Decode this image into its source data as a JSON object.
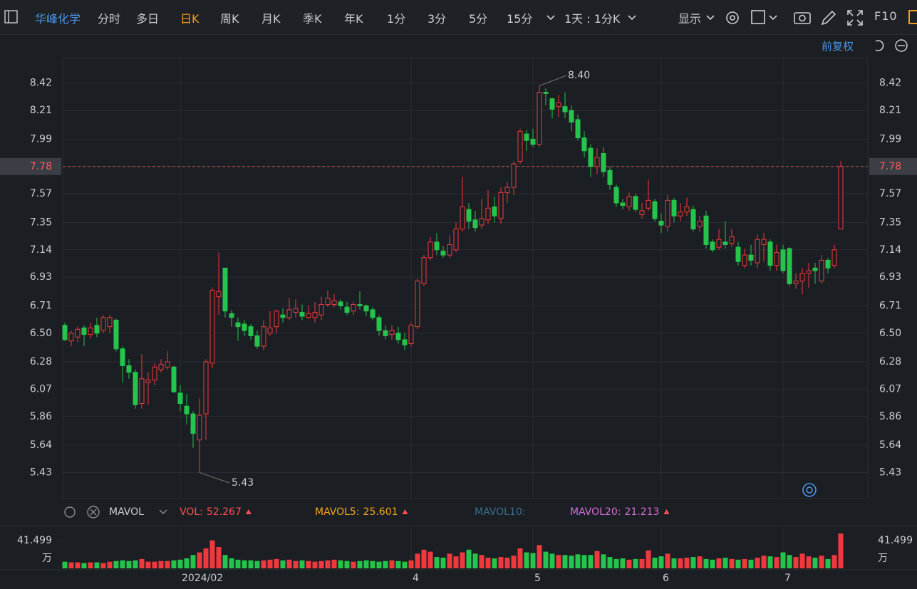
{
  "toolbar": {
    "stock": "华峰化学",
    "periods": [
      "分时",
      "多日",
      "日K",
      "周K",
      "月K",
      "季K",
      "年K",
      "1分",
      "3分",
      "5分",
      "15分"
    ],
    "active": "日K",
    "range": "1天 : 1分K",
    "display": "显示",
    "f10": "F10",
    "adjust": "前复权"
  },
  "chart_data": [
    {
      "type": "candlestick",
      "categories": [
        null,
        null,
        null,
        null,
        null,
        null,
        null,
        null,
        null,
        null,
        null,
        null,
        null,
        null,
        null,
        null,
        null,
        null,
        "2024/02",
        null,
        null,
        null,
        null,
        null,
        null,
        null,
        null,
        null,
        null,
        null,
        null,
        null,
        null,
        null,
        null,
        null,
        null,
        null,
        null,
        null,
        null,
        null,
        null,
        null,
        null,
        null,
        null,
        null,
        null,
        null,
        null,
        null,
        null,
        null,
        "4",
        null,
        null,
        null,
        null,
        null,
        null,
        null,
        null,
        null,
        null,
        null,
        null,
        null,
        null,
        null,
        null,
        null,
        null,
        "5",
        null,
        null,
        null,
        null,
        null,
        null,
        null,
        null,
        null,
        null,
        null,
        null,
        null,
        null,
        null,
        null,
        null,
        null,
        null,
        "6",
        null,
        null,
        null,
        null,
        null,
        null,
        null,
        null,
        null,
        null,
        null,
        null,
        null,
        null,
        null,
        null,
        null,
        null,
        "7",
        null,
        null,
        null,
        null,
        null,
        null,
        null,
        null,
        null
      ],
      "open": [
        6.56,
        6.44,
        6.47,
        6.54,
        6.49,
        6.56,
        6.52,
        6.55,
        6.6,
        6.38,
        6.25,
        6.2,
        5.96,
        6.12,
        6.14,
        6.22,
        6.24,
        6.24,
        6.04,
        5.94,
        5.88,
        5.68,
        5.88,
        6.27,
        6.78,
        7.0,
        6.65,
        6.58,
        6.57,
        6.55,
        6.48,
        6.4,
        6.5,
        6.55,
        6.64,
        6.62,
        6.66,
        6.66,
        6.62,
        6.62,
        6.64,
        6.72,
        6.72,
        6.74,
        6.7,
        6.67,
        6.72,
        6.71,
        6.68,
        6.62,
        6.52,
        6.49,
        6.5,
        6.45,
        6.42,
        6.55,
        6.88,
        7.08,
        7.2,
        7.13,
        7.1,
        7.14,
        7.3,
        7.45,
        7.37,
        7.33,
        7.37,
        7.47,
        7.38,
        7.58,
        7.62,
        7.82,
        8.03,
        7.99,
        7.95,
        8.35,
        8.3,
        8.24,
        8.24,
        8.21,
        8.14,
        8.0,
        7.92,
        7.78,
        7.88,
        7.75,
        7.62,
        7.5,
        7.47,
        7.55,
        7.41,
        7.46,
        7.51,
        7.36,
        7.32,
        7.52,
        7.4,
        7.43,
        7.45,
        7.32,
        7.4,
        7.2,
        7.16,
        7.2,
        7.19,
        7.16,
        7.02,
        7.1,
        7.04,
        7.18,
        7.2,
        7.02,
        7.14,
        7.15,
        6.88,
        6.9,
        6.96,
        7.0,
        6.9,
        7.06,
        7.02,
        7.3
      ],
      "high": [
        6.58,
        6.52,
        6.55,
        6.56,
        6.58,
        6.62,
        6.64,
        6.64,
        6.61,
        6.4,
        6.3,
        6.22,
        6.34,
        6.2,
        6.27,
        6.3,
        6.36,
        6.25,
        6.1,
        6.03,
        5.9,
        6.0,
        6.3,
        6.85,
        7.12,
        7.0,
        6.68,
        6.62,
        6.6,
        6.57,
        6.52,
        6.6,
        6.67,
        6.68,
        6.69,
        6.77,
        6.76,
        6.72,
        6.71,
        6.74,
        6.78,
        6.83,
        6.8,
        6.76,
        6.74,
        6.74,
        6.82,
        6.72,
        6.7,
        6.64,
        6.56,
        6.56,
        6.55,
        6.5,
        6.58,
        6.92,
        7.1,
        7.24,
        7.27,
        7.17,
        7.25,
        7.35,
        7.7,
        7.5,
        7.44,
        7.53,
        7.6,
        7.55,
        7.62,
        7.66,
        7.82,
        8.07,
        8.06,
        8.07,
        8.4,
        8.38,
        8.31,
        8.33,
        8.35,
        8.25,
        8.18,
        8.05,
        7.95,
        7.92,
        7.93,
        7.78,
        7.64,
        7.53,
        7.58,
        7.57,
        7.5,
        7.68,
        7.53,
        7.42,
        7.56,
        7.54,
        7.5,
        7.54,
        7.48,
        7.4,
        7.44,
        7.22,
        7.3,
        7.36,
        7.3,
        7.2,
        7.15,
        7.18,
        7.26,
        7.27,
        7.22,
        7.18,
        7.18,
        7.16,
        6.96,
        7.0,
        7.04,
        7.04,
        7.1,
        7.08,
        7.18,
        7.82
      ],
      "low": [
        6.44,
        6.4,
        6.43,
        6.4,
        6.46,
        6.47,
        6.5,
        6.5,
        6.36,
        6.12,
        6.15,
        5.92,
        5.92,
        5.95,
        6.1,
        6.2,
        6.22,
        6.04,
        5.9,
        5.8,
        5.62,
        5.43,
        5.68,
        6.23,
        6.64,
        6.62,
        6.55,
        6.44,
        6.48,
        6.45,
        6.38,
        6.37,
        6.48,
        6.5,
        6.58,
        6.6,
        6.62,
        6.6,
        6.61,
        6.58,
        6.6,
        6.7,
        6.7,
        6.68,
        6.64,
        6.64,
        6.68,
        6.63,
        6.6,
        6.48,
        6.45,
        6.45,
        6.42,
        6.37,
        6.4,
        6.53,
        6.86,
        7.06,
        7.1,
        7.08,
        7.08,
        7.12,
        7.28,
        7.3,
        7.28,
        7.3,
        7.34,
        7.35,
        7.34,
        7.5,
        7.56,
        7.8,
        7.9,
        7.93,
        7.93,
        8.25,
        8.15,
        8.16,
        8.15,
        8.05,
        7.98,
        7.85,
        7.7,
        7.72,
        7.7,
        7.6,
        7.47,
        7.45,
        7.44,
        7.43,
        7.38,
        7.44,
        7.36,
        7.27,
        7.28,
        7.35,
        7.36,
        7.4,
        7.28,
        7.28,
        7.15,
        7.12,
        7.14,
        7.15,
        7.16,
        7.02,
        7.0,
        7.02,
        7.0,
        7.05,
        6.98,
        6.98,
        6.96,
        6.86,
        6.84,
        6.8,
        6.85,
        6.88,
        6.88,
        6.96,
        7.0,
        7.3
      ],
      "close": [
        6.45,
        6.5,
        6.53,
        6.49,
        6.54,
        6.5,
        6.62,
        6.62,
        6.38,
        6.25,
        6.2,
        5.95,
        6.15,
        6.14,
        6.24,
        6.26,
        6.28,
        6.05,
        5.96,
        5.88,
        5.73,
        5.87,
        6.28,
        6.83,
        6.82,
        6.67,
        6.62,
        6.55,
        6.52,
        6.48,
        6.4,
        6.55,
        6.54,
        6.67,
        6.62,
        6.68,
        6.69,
        6.63,
        6.65,
        6.66,
        6.72,
        6.77,
        6.75,
        6.71,
        6.66,
        6.72,
        6.71,
        6.67,
        6.62,
        6.52,
        6.48,
        6.52,
        6.45,
        6.41,
        6.56,
        6.9,
        7.08,
        7.2,
        7.14,
        7.1,
        7.18,
        7.3,
        7.47,
        7.36,
        7.31,
        7.38,
        7.46,
        7.4,
        7.58,
        7.62,
        7.8,
        8.05,
        7.98,
        7.95,
        8.35,
        8.34,
        8.22,
        8.27,
        8.2,
        8.12,
        8.0,
        7.9,
        7.78,
        7.85,
        7.74,
        7.64,
        7.5,
        7.48,
        7.55,
        7.45,
        7.44,
        7.52,
        7.38,
        7.33,
        7.52,
        7.4,
        7.43,
        7.47,
        7.3,
        7.36,
        7.18,
        7.14,
        7.22,
        7.18,
        7.24,
        7.05,
        7.1,
        7.06,
        7.22,
        7.22,
        7.02,
        7.12,
        6.98,
        6.88,
        6.9,
        6.96,
        6.98,
        6.98,
        7.06,
        7.0,
        7.14,
        7.78
      ],
      "up_color": "#f0393f",
      "down_color": "#25c44d",
      "ylim": [
        5.23,
        8.61
      ],
      "yticks": [
        8.42,
        8.21,
        7.99,
        7.78,
        7.57,
        7.35,
        7.14,
        6.93,
        6.71,
        {
          "value": 6.5,
          "label": "6.50"
        },
        6.28,
        6.07,
        5.86,
        5.64,
        5.43
      ],
      "high_annotation": {
        "value": 8.4,
        "label": "8.40"
      },
      "low_annotation": 5.43,
      "last_price": 7.78,
      "grid": true
    },
    {
      "type": "bar",
      "indicator": "MAVOL",
      "legend": [
        {
          "label": "VOL:",
          "value": 52.267,
          "color": "#ff4d55"
        },
        {
          "label": "MAVOL5:",
          "value": 25.601,
          "color": "#f5a623"
        },
        {
          "label": "MAVOL10:",
          "color": "#3c6e8f"
        },
        {
          "label": "MAVOL20:",
          "value": 21.213,
          "color": "#d46fd8"
        }
      ],
      "values": [
        10,
        9,
        9,
        8,
        9,
        9,
        8,
        10,
        11,
        12,
        11,
        12,
        14,
        10,
        10,
        11,
        11,
        12,
        13,
        15,
        20,
        24,
        30,
        42,
        32,
        20,
        15,
        13,
        12,
        12,
        11,
        12,
        13,
        14,
        12,
        13,
        11,
        12,
        11,
        10,
        11,
        12,
        13,
        12,
        11,
        10,
        11,
        12,
        11,
        10,
        11,
        12,
        11,
        10,
        12,
        22,
        28,
        25,
        17,
        16,
        22,
        18,
        24,
        28,
        22,
        20,
        16,
        15,
        17,
        16,
        19,
        30,
        24,
        23,
        35,
        25,
        22,
        20,
        20,
        19,
        21,
        20,
        20,
        26,
        21,
        17,
        14,
        15,
        13,
        14,
        14,
        27,
        16,
        18,
        22,
        15,
        15,
        16,
        17,
        18,
        14,
        13,
        15,
        16,
        14,
        13,
        14,
        13,
        16,
        19,
        18,
        17,
        24,
        20,
        17,
        22,
        18,
        16,
        19,
        14,
        20,
        52.267
      ],
      "ylim": [
        0,
        62
      ],
      "yticks": [
        41.499
      ],
      "y_unit": "万"
    }
  ]
}
